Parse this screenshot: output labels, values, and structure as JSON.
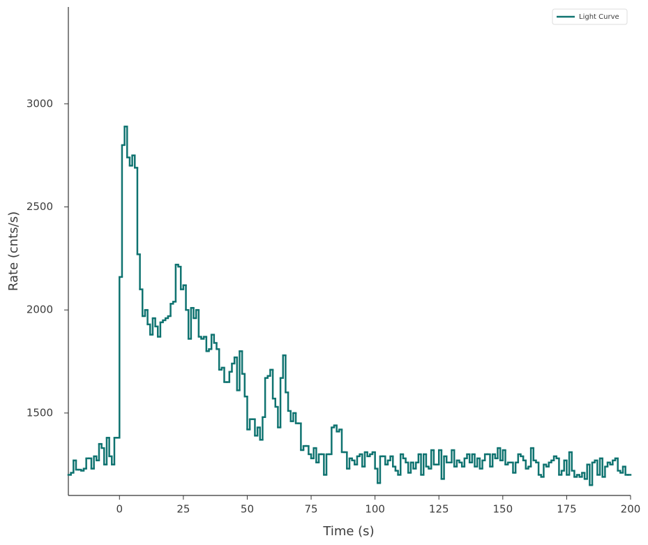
{
  "chart_data": {
    "type": "step",
    "xlabel": "Time (s)",
    "ylabel": "Rate (cnts/s)",
    "xlim": [
      -20,
      200
    ],
    "ylim": [
      1100,
      3470
    ],
    "xticks": [
      0,
      25,
      50,
      75,
      100,
      125,
      150,
      175,
      200
    ],
    "yticks": [
      1500,
      2000,
      2500,
      3000
    ],
    "legend_position": "upper right",
    "series": [
      {
        "name": "Light Curve",
        "color": "#0f7370",
        "x": [
          -20,
          -19,
          -18,
          -17,
          -16,
          -15,
          -14,
          -13,
          -12,
          -11,
          -10,
          -9,
          -8,
          -7,
          -6,
          -5,
          -4,
          -3,
          -2,
          -1,
          0,
          1,
          2,
          3,
          4,
          5,
          6,
          7,
          8,
          9,
          10,
          11,
          12,
          13,
          14,
          15,
          16,
          17,
          18,
          19,
          20,
          21,
          22,
          23,
          24,
          25,
          26,
          27,
          28,
          29,
          30,
          31,
          32,
          33,
          34,
          35,
          36,
          37,
          38,
          39,
          40,
          41,
          42,
          43,
          44,
          45,
          46,
          47,
          48,
          49,
          50,
          51,
          52,
          53,
          54,
          55,
          56,
          57,
          58,
          59,
          60,
          61,
          62,
          63,
          64,
          65,
          66,
          67,
          68,
          69,
          70,
          71,
          72,
          73,
          74,
          75,
          76,
          77,
          78,
          79,
          80,
          81,
          82,
          83,
          84,
          85,
          86,
          87,
          88,
          89,
          90,
          91,
          92,
          93,
          94,
          95,
          96,
          97,
          98,
          99,
          100,
          101,
          102,
          103,
          104,
          105,
          106,
          107,
          108,
          109,
          110,
          111,
          112,
          113,
          114,
          115,
          116,
          117,
          118,
          119,
          120,
          121,
          122,
          123,
          124,
          125,
          126,
          127,
          128,
          129,
          130,
          131,
          132,
          133,
          134,
          135,
          136,
          137,
          138,
          139,
          140,
          141,
          142,
          143,
          144,
          145,
          146,
          147,
          148,
          149,
          150,
          151,
          152,
          153,
          154,
          155,
          156,
          157,
          158,
          159,
          160,
          161,
          162,
          163,
          164,
          165,
          166,
          167,
          168,
          169,
          170,
          171,
          172,
          173,
          174,
          175,
          176,
          177,
          178,
          179,
          180,
          181,
          182,
          183,
          184,
          185,
          186,
          187,
          188,
          189,
          190,
          191,
          192,
          193,
          194,
          195,
          196,
          197,
          198,
          199
        ],
        "values": [
          1200,
          1210,
          1270,
          1225,
          1225,
          1220,
          1230,
          1280,
          1280,
          1230,
          1290,
          1270,
          1350,
          1330,
          1250,
          1380,
          1290,
          1250,
          1380,
          1380,
          2160,
          2800,
          2890,
          2740,
          2700,
          2750,
          2690,
          2270,
          2100,
          1970,
          2000,
          1930,
          1880,
          1960,
          1920,
          1870,
          1940,
          1950,
          1960,
          1970,
          2030,
          2040,
          2220,
          2210,
          2100,
          2120,
          2000,
          1860,
          2010,
          1960,
          2000,
          1870,
          1860,
          1870,
          1800,
          1810,
          1880,
          1840,
          1810,
          1710,
          1720,
          1650,
          1650,
          1700,
          1740,
          1770,
          1610,
          1800,
          1690,
          1580,
          1420,
          1470,
          1470,
          1390,
          1430,
          1370,
          1480,
          1670,
          1680,
          1710,
          1570,
          1530,
          1430,
          1670,
          1780,
          1600,
          1510,
          1460,
          1500,
          1450,
          1450,
          1320,
          1340,
          1340,
          1300,
          1280,
          1330,
          1260,
          1300,
          1300,
          1200,
          1300,
          1300,
          1430,
          1440,
          1410,
          1420,
          1310,
          1310,
          1230,
          1280,
          1270,
          1250,
          1290,
          1300,
          1240,
          1310,
          1290,
          1300,
          1310,
          1230,
          1160,
          1290,
          1290,
          1250,
          1270,
          1290,
          1240,
          1220,
          1200,
          1300,
          1280,
          1260,
          1210,
          1260,
          1230,
          1260,
          1300,
          1200,
          1300,
          1240,
          1230,
          1320,
          1250,
          1250,
          1320,
          1180,
          1290,
          1260,
          1260,
          1320,
          1240,
          1270,
          1260,
          1240,
          1280,
          1300,
          1260,
          1300,
          1240,
          1280,
          1230,
          1270,
          1300,
          1300,
          1240,
          1300,
          1280,
          1330,
          1270,
          1320,
          1250,
          1260,
          1260,
          1210,
          1260,
          1300,
          1290,
          1270,
          1230,
          1240,
          1330,
          1270,
          1260,
          1200,
          1190,
          1250,
          1240,
          1260,
          1270,
          1290,
          1280,
          1200,
          1220,
          1270,
          1200,
          1310,
          1220,
          1190,
          1200,
          1190,
          1210,
          1180,
          1250,
          1150,
          1260,
          1270,
          1200,
          1280,
          1190,
          1240,
          1260,
          1250,
          1270,
          1280,
          1220,
          1210,
          1240,
          1200,
          1200
        ]
      }
    ]
  }
}
